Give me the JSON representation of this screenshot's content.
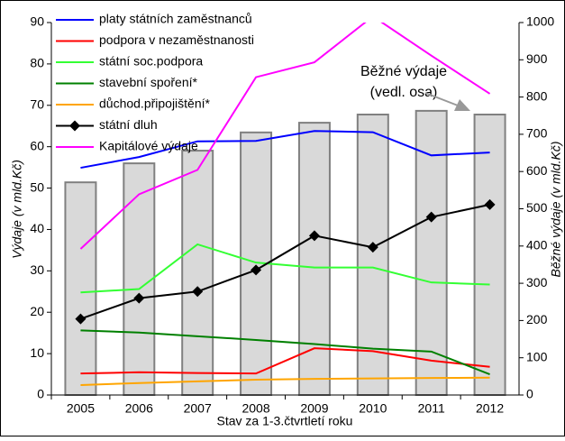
{
  "chart_data": {
    "type": "combo",
    "categories": [
      "2005",
      "2006",
      "2007",
      "2008",
      "2009",
      "2010",
      "2011",
      "2012"
    ],
    "x_label": "Stav za 1-3.čtvrtletí roku",
    "y_label": "Výdaje (v mld.Kč)",
    "y2_label": "Běžné výdaje (v mld.Kč)",
    "annotation": [
      "Běžné výdaje",
      "(vedl. osa)"
    ],
    "ylim": [
      0,
      90
    ],
    "yticks": [
      0,
      10,
      20,
      30,
      40,
      50,
      60,
      70,
      80,
      90
    ],
    "y2lim": [
      0,
      1000
    ],
    "y2ticks": [
      0,
      100,
      200,
      300,
      400,
      500,
      600,
      700,
      800,
      900,
      1000
    ],
    "bar_series": {
      "color": "#d9d9d9",
      "axis": "y2",
      "values": [
        571,
        622,
        656,
        705,
        731,
        753,
        763,
        753
      ]
    },
    "series": [
      {
        "name": "platy státních zaměstnanců",
        "color": "#0000ff",
        "values": [
          54.9,
          57.5,
          61.3,
          61.4,
          63.8,
          63.5,
          57.9,
          58.6
        ]
      },
      {
        "name": "podpora v nezaměstnanosti",
        "color": "#ff0000",
        "values": [
          5.2,
          5.5,
          5.3,
          5.2,
          11.3,
          10.6,
          8.3,
          6.8
        ]
      },
      {
        "name": "státní soc.podpora",
        "color": "#33ff33",
        "values": [
          24.8,
          25.6,
          36.4,
          32,
          30.8,
          30.8,
          27.2,
          26.7
        ]
      },
      {
        "name": "stavební spoření*",
        "color": "#008000",
        "values": [
          15.6,
          15.1,
          14.2,
          13.3,
          12.3,
          11.2,
          10.5,
          5
        ]
      },
      {
        "name": "důchod.připojištění*",
        "color": "#ffa500",
        "values": [
          2.4,
          2.9,
          3.3,
          3.7,
          3.9,
          4.0,
          4.1,
          4.2
        ]
      },
      {
        "name": "státní dluh",
        "color": "#000000",
        "marker": "diamond",
        "values": [
          18.4,
          23.4,
          25,
          30.2,
          38.5,
          35.7,
          43,
          46
        ]
      },
      {
        "name": "Kapitálové výdaje",
        "color": "#ff00ff",
        "values": [
          35.3,
          48.5,
          54.4,
          76.8,
          80.4,
          91.5,
          82,
          72.8
        ]
      }
    ]
  }
}
